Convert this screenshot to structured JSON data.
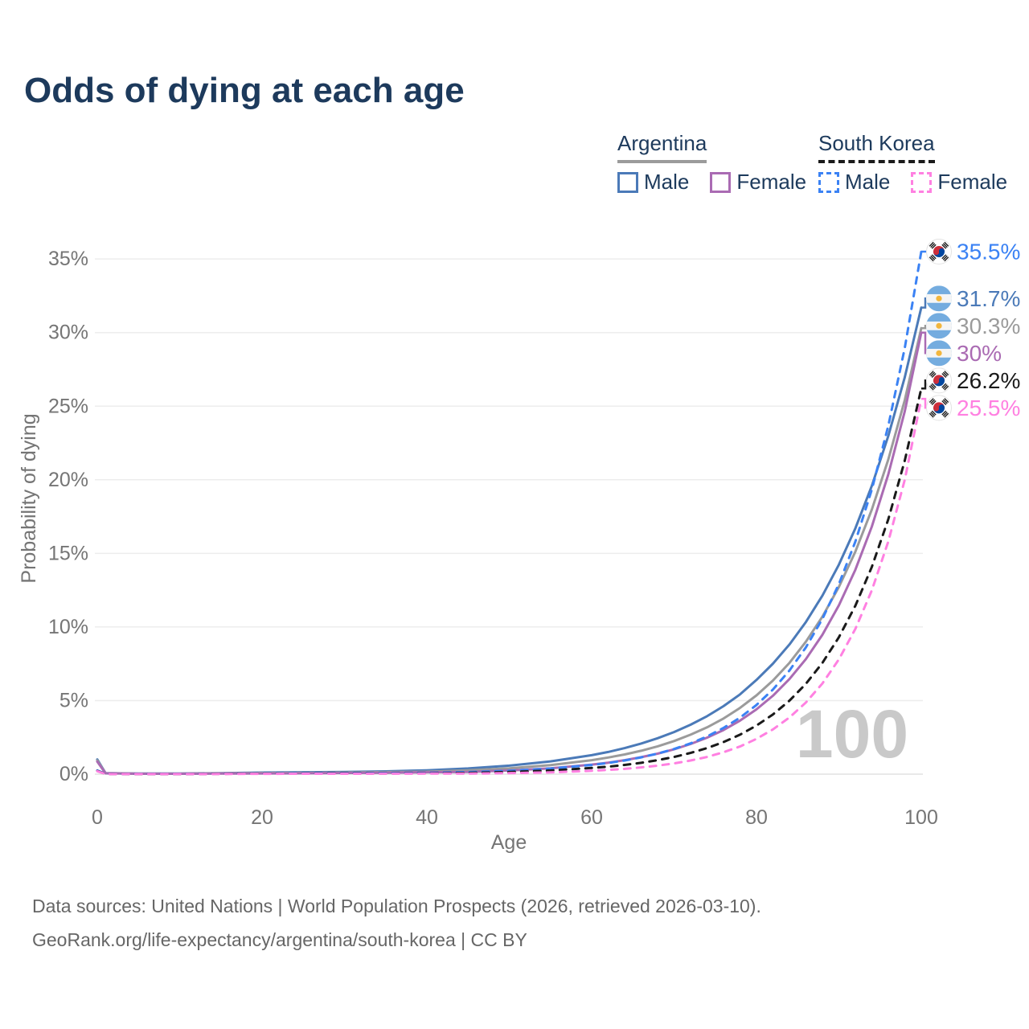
{
  "title": "Odds of dying at each age",
  "legend": {
    "groups": [
      {
        "label": "Argentina",
        "line_style": "solid",
        "underline_color": "#9b9b9b",
        "items": [
          {
            "label": "Male",
            "color": "#4b7ab8",
            "dashed": false
          },
          {
            "label": "Female",
            "color": "#aa6bb3",
            "dashed": false
          }
        ]
      },
      {
        "label": "South Korea",
        "line_style": "dashed",
        "underline_color": "#1a1a1a",
        "items": [
          {
            "label": "Male",
            "color": "#3b82f4",
            "dashed": true
          },
          {
            "label": "Female",
            "color": "#ff80e1",
            "dashed": true
          }
        ]
      }
    ]
  },
  "watermark": "100",
  "footer": {
    "line1": "Data sources: United Nations | World Population Prospects (2026, retrieved 2026-03-10).",
    "line2": "GeoRank.org/life-expectancy/argentina/south-korea | CC BY"
  },
  "colors": {
    "title_text": "#1d3a5c",
    "axis_text": "#757575",
    "gridline": "#ededed",
    "zero_line": "#e2e2e2",
    "watermark": "#c9c9c9",
    "footer_text": "#666666"
  },
  "chart_data": {
    "type": "line",
    "title": "Odds of dying at each age",
    "xlabel": "Age",
    "ylabel": "Probability of dying",
    "xlim": [
      0,
      100
    ],
    "ylim_pct": [
      0,
      35
    ],
    "x_ticks": [
      0,
      20,
      40,
      60,
      80,
      100
    ],
    "y_ticks_pct": [
      0,
      5,
      10,
      15,
      20,
      25,
      30,
      35
    ],
    "y_tick_labels": [
      "0%",
      "5%",
      "10%",
      "15%",
      "20%",
      "25%",
      "30%",
      "35%"
    ],
    "grid": true,
    "legend_position": "top-right",
    "hover_age": "100",
    "ages": [
      0,
      1,
      5,
      10,
      15,
      20,
      25,
      30,
      35,
      40,
      45,
      50,
      55,
      60,
      62,
      64,
      66,
      68,
      70,
      72,
      74,
      76,
      78,
      80,
      82,
      84,
      86,
      88,
      90,
      92,
      94,
      96,
      98,
      100
    ],
    "series": [
      {
        "name": "Argentina Male",
        "country": "Argentina",
        "sex": "Male",
        "color": "#4b7ab8",
        "dashed": false,
        "flag": "ar",
        "end_label": "31.7%",
        "end_value_pct": 31.7,
        "values_pct": [
          1.0,
          0.07,
          0.04,
          0.04,
          0.07,
          0.11,
          0.13,
          0.15,
          0.19,
          0.26,
          0.39,
          0.58,
          0.87,
          1.29,
          1.51,
          1.77,
          2.08,
          2.44,
          2.86,
          3.36,
          3.94,
          4.62,
          5.42,
          6.4,
          7.51,
          8.81,
          10.34,
          12.13,
          14.23,
          16.7,
          19.59,
          22.98,
          26.97,
          31.7
        ]
      },
      {
        "name": "Argentina",
        "country": "Argentina",
        "sex": "Both",
        "color": "#9b9b9b",
        "dashed": false,
        "flag": "ar",
        "end_label": "30.3%",
        "end_value_pct": 30.3,
        "values_pct": [
          0.93,
          0.065,
          0.035,
          0.035,
          0.055,
          0.08,
          0.09,
          0.11,
          0.14,
          0.17,
          0.26,
          0.4,
          0.61,
          0.95,
          1.13,
          1.34,
          1.59,
          1.89,
          2.25,
          2.68,
          3.18,
          3.78,
          4.5,
          5.35,
          6.36,
          7.56,
          9.0,
          10.7,
          12.72,
          15.12,
          17.98,
          21.38,
          25.42,
          30.3
        ]
      },
      {
        "name": "Argentina Female",
        "country": "Argentina",
        "sex": "Female",
        "color": "#aa6bb3",
        "dashed": false,
        "flag": "ar",
        "end_label": "30%",
        "end_value_pct": 30,
        "values_pct": [
          0.85,
          0.06,
          0.03,
          0.03,
          0.04,
          0.05,
          0.06,
          0.08,
          0.1,
          0.13,
          0.15,
          0.25,
          0.4,
          0.65,
          0.78,
          0.95,
          1.15,
          1.39,
          1.69,
          2.05,
          2.48,
          3.0,
          3.64,
          4.4,
          5.33,
          6.46,
          7.82,
          9.47,
          11.47,
          13.89,
          16.82,
          20.37,
          24.66,
          30.0
        ]
      },
      {
        "name": "South Korea Male",
        "country": "South Korea",
        "sex": "Male",
        "color": "#3b82f4",
        "dashed": true,
        "flag": "kr",
        "end_label": "35.5%",
        "end_value_pct": 35.5,
        "values_pct": [
          0.25,
          0.02,
          0.01,
          0.01,
          0.03,
          0.05,
          0.06,
          0.07,
          0.08,
          0.09,
          0.14,
          0.23,
          0.38,
          0.62,
          0.76,
          0.93,
          1.14,
          1.4,
          1.71,
          2.09,
          2.56,
          3.14,
          3.84,
          4.7,
          5.75,
          7.04,
          8.62,
          10.55,
          12.91,
          15.8,
          19.34,
          23.67,
          28.97,
          35.5
        ]
      },
      {
        "name": "South Korea",
        "country": "South Korea",
        "sex": "Both",
        "color": "#1a1a1a",
        "dashed": true,
        "flag": "kr",
        "end_label": "26.2%",
        "end_value_pct": 26.2,
        "values_pct": [
          0.22,
          0.015,
          0.008,
          0.008,
          0.02,
          0.035,
          0.04,
          0.05,
          0.05,
          0.06,
          0.09,
          0.15,
          0.25,
          0.42,
          0.51,
          0.63,
          0.77,
          0.95,
          1.17,
          1.44,
          1.77,
          2.18,
          2.68,
          3.3,
          4.06,
          4.99,
          6.14,
          7.56,
          9.3,
          11.44,
          14.08,
          17.32,
          21.31,
          26.2
        ]
      },
      {
        "name": "South Korea Female",
        "country": "South Korea",
        "sex": "Female",
        "color": "#ff80e1",
        "dashed": true,
        "flag": "kr",
        "end_label": "25.5%",
        "end_value_pct": 25.5,
        "values_pct": [
          0.2,
          0.012,
          0.007,
          0.007,
          0.013,
          0.02,
          0.025,
          0.03,
          0.035,
          0.04,
          0.04,
          0.07,
          0.12,
          0.23,
          0.29,
          0.36,
          0.46,
          0.58,
          0.73,
          0.93,
          1.17,
          1.49,
          1.88,
          2.4,
          3.04,
          3.85,
          4.87,
          6.16,
          7.8,
          9.87,
          12.49,
          15.81,
          20.01,
          25.5
        ]
      }
    ]
  }
}
